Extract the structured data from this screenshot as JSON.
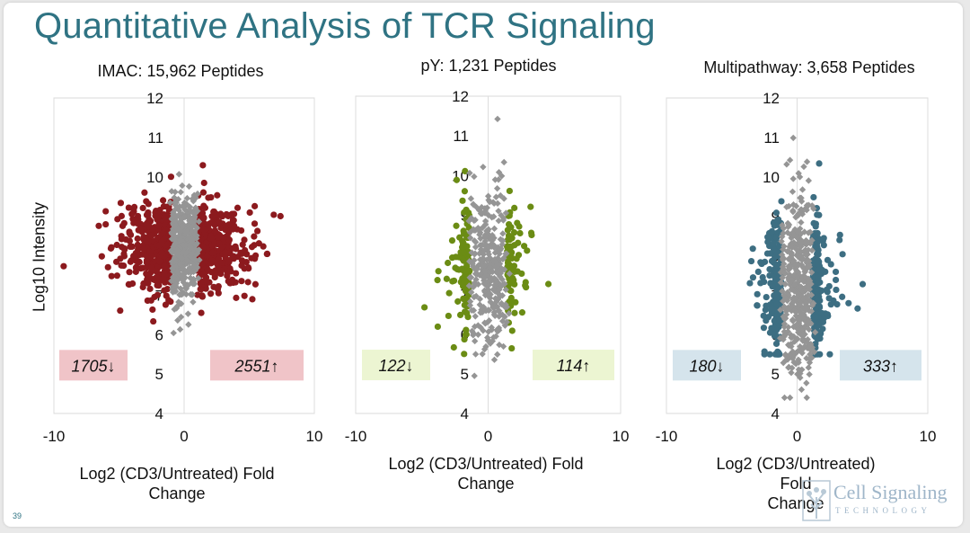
{
  "slide": {
    "title": "Quantitative Analysis of TCR Signaling",
    "page_number": "39",
    "logo": {
      "name": "Cell Signaling",
      "sub": "TECHNOLOGY"
    },
    "ylabel": "Log10 Intensity",
    "xlabel_line1": "Log2 (CD3/Untreated) Fold",
    "xlabel_line2": "Change"
  },
  "chart_data": [
    {
      "type": "scatter",
      "title": "IMAC: 15,962 Peptides",
      "xlabel": "Log2 (CD3/Untreated) Fold Change",
      "ylabel": "Log10 Intensity",
      "xlim": [
        -10,
        10
      ],
      "ylim": [
        4,
        12
      ],
      "xticks": [
        "-10",
        "0",
        "10"
      ],
      "yticks": [
        "4",
        "5",
        "6",
        "7",
        "8",
        "9",
        "10",
        "11",
        "12"
      ],
      "regulated_color": "#8c1a1e",
      "unchanged_color": "#959595",
      "cloud": {
        "x_sd": 2.3,
        "y_mean": 8.2,
        "y_sd": 0.55,
        "n_regulated": 900,
        "n_unchanged": 420,
        "unchanged_half_width": 1.0
      },
      "down_label": "1705↓",
      "up_label": "2551↑",
      "box_color": "#f0c4c8"
    },
    {
      "type": "scatter",
      "title": "pY: 1,231 Peptides",
      "xlabel": "Log2 (CD3/Untreated) Fold Change",
      "ylabel": "Log10 Intensity",
      "xlim": [
        -10,
        10
      ],
      "ylim": [
        4,
        12
      ],
      "xticks": [
        "-10",
        "0",
        "10"
      ],
      "yticks": [
        "4",
        "5",
        "6",
        "7",
        "8",
        "9",
        "10",
        "11",
        "12"
      ],
      "regulated_color": "#6b8c14",
      "unchanged_color": "#959595",
      "cloud": {
        "x_sd": 1.6,
        "y_mean": 7.6,
        "y_sd": 0.8,
        "n_regulated": 210,
        "n_unchanged": 320,
        "unchanged_half_width": 1.4
      },
      "down_label": "122↓",
      "up_label": "114↑",
      "box_color": "#ecf5d2"
    },
    {
      "type": "scatter",
      "title": "Multipathway: 3,658 Peptides",
      "xlabel": "Log2 (CD3/Untreated) Fold Change",
      "ylabel": "Log10 Intensity",
      "xlim": [
        -10,
        10
      ],
      "ylim": [
        4,
        12
      ],
      "xticks": [
        "-10",
        "0",
        "10"
      ],
      "yticks": [
        "4",
        "5",
        "6",
        "7",
        "8",
        "9",
        "10",
        "11",
        "12"
      ],
      "regulated_color": "#3d6e82",
      "unchanged_color": "#959595",
      "cloud": {
        "x_sd": 1.4,
        "y_mean": 7.2,
        "y_sd": 0.95,
        "n_regulated": 380,
        "n_unchanged": 420,
        "unchanged_half_width": 1.2
      },
      "down_label": "180↓",
      "up_label": "333↑",
      "box_color": "#d5e4ec"
    }
  ]
}
